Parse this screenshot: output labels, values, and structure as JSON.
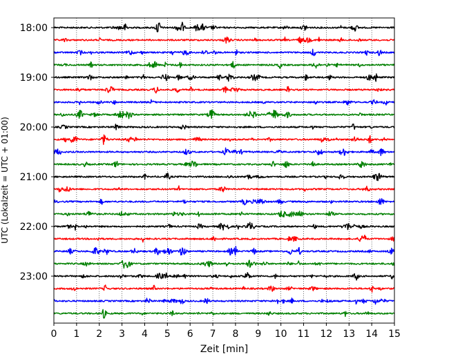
{
  "chart_data": {
    "type": "line",
    "title": "",
    "xlabel": "Zeit  [min]",
    "ylabel": "UTC (Lokalzeit = UTC + 01:00)",
    "xlim": [
      0,
      15
    ],
    "x_ticks": [
      "0",
      "1",
      "2",
      "3",
      "4",
      "5",
      "6",
      "7",
      "8",
      "9",
      "10",
      "11",
      "12",
      "13",
      "14",
      "15"
    ],
    "y_tick_labels": [
      "18:00",
      "19:00",
      "20:00",
      "21:00",
      "22:00",
      "23:00"
    ],
    "grid": "vertical dotted lines at each minute",
    "trace_interval_min": 15,
    "start_time": "18:00",
    "trace_colors": [
      "#000000",
      "#ff0000",
      "#0000ff",
      "#008000"
    ],
    "trace_count": 24
  }
}
